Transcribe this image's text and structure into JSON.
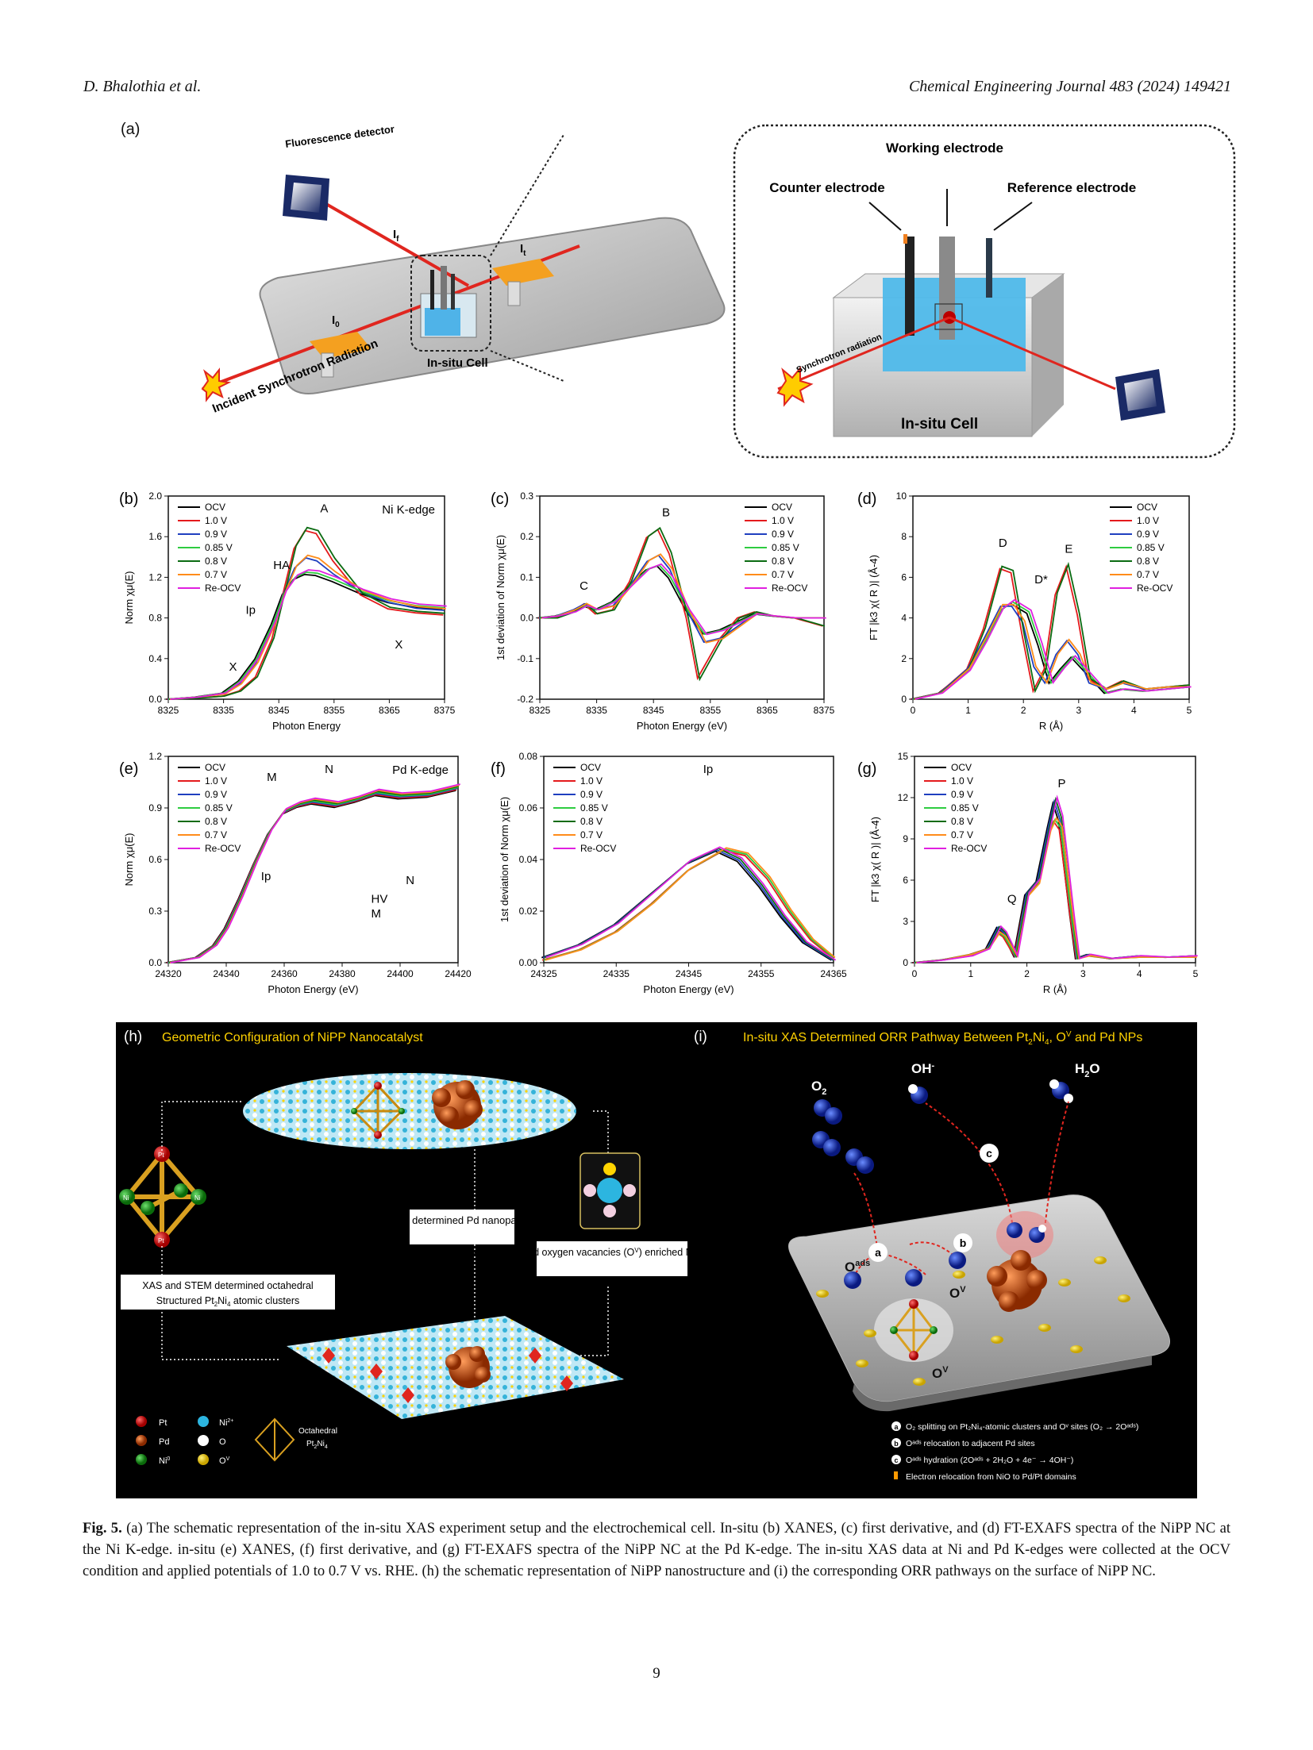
{
  "header": {
    "authors": "D. Bhalothia et al.",
    "journal": "Chemical Engineering Journal 483 (2024) 149421"
  },
  "panel_a": {
    "label": "(a)",
    "fluorescence_detector": "Fluorescence detector",
    "incident": "Incident Synchrotron Radiation",
    "i0": "I",
    "i0_sub": "0",
    "it": "I",
    "it_sub": "t",
    "if": "I",
    "if_sub": "f",
    "insitu_cell": "In-situ Cell",
    "counter_electrode": "Counter electrode",
    "working_electrode": "Working electrode",
    "reference_electrode": "Reference electrode",
    "synchrotron_radiation": "Synchrotron radiation",
    "insitu_cell_big": "In-situ Cell"
  },
  "legend_labels": [
    "OCV",
    "1.0 V",
    "0.9 V",
    "0.85 V",
    "0.8 V",
    "0.7 V",
    "Re-OCV"
  ],
  "series_colors": [
    "#000000",
    "#e41a1c",
    "#1f3fbf",
    "#2ecc40",
    "#0b6b12",
    "#ff8c1a",
    "#e020e0"
  ],
  "chart_data": [
    {
      "panel": "(b)",
      "type": "line",
      "title": "Ni K-edge",
      "xlabel": "Photon Energy",
      "ylabel": "Norm χμ(E)",
      "xlim": [
        8325,
        8375
      ],
      "ylim": [
        0.0,
        2.0
      ],
      "xticks": [
        "8325",
        "8335",
        "8345",
        "8355",
        "8365",
        "8375"
      ],
      "yticks": [
        "0.0",
        "0.4",
        "0.8",
        "1.2",
        "1.6",
        "2.0"
      ],
      "annotations": [
        "A",
        "HA",
        "Ip",
        "X",
        "X"
      ],
      "series": [
        {
          "name": "OCV",
          "x": [
            8325,
            8330,
            8335,
            8338,
            8341,
            8344,
            8346,
            8348,
            8350,
            8352,
            8355,
            8360,
            8365,
            8370,
            8375
          ],
          "y": [
            0.0,
            0.02,
            0.06,
            0.18,
            0.4,
            0.75,
            1.05,
            1.2,
            1.25,
            1.24,
            1.18,
            1.06,
            0.97,
            0.92,
            0.9
          ]
        },
        {
          "name": "0.7 V",
          "x": [
            8325,
            8330,
            8335,
            8338,
            8341,
            8344,
            8346,
            8348,
            8350,
            8352,
            8355,
            8360,
            8365,
            8370,
            8375
          ],
          "y": [
            0.0,
            0.01,
            0.03,
            0.08,
            0.22,
            0.6,
            1.05,
            1.5,
            1.68,
            1.65,
            1.38,
            1.04,
            0.9,
            0.86,
            0.84
          ]
        },
        {
          "name": "Re-OCV",
          "x": [
            8325,
            8330,
            8335,
            8338,
            8341,
            8344,
            8346,
            8348,
            8350,
            8352,
            8355,
            8360,
            8365,
            8370,
            8375
          ],
          "y": [
            0.0,
            0.02,
            0.05,
            0.15,
            0.36,
            0.72,
            1.05,
            1.3,
            1.4,
            1.37,
            1.24,
            1.06,
            0.96,
            0.9,
            0.88
          ]
        }
      ]
    },
    {
      "panel": "(c)",
      "type": "line",
      "xlabel": "Photon Energy (eV)",
      "ylabel": "1st deviation of Norm χμ(E)",
      "xlim": [
        8325,
        8375
      ],
      "ylim": [
        -0.2,
        0.3
      ],
      "xticks": [
        "8325",
        "8335",
        "8345",
        "8355",
        "8365",
        "8375"
      ],
      "yticks": [
        "-0.2",
        "-0.1",
        "0.0",
        "0.1",
        "0.2",
        "0.3"
      ],
      "annotations": [
        "B",
        "C"
      ],
      "series": [
        {
          "name": "OCV",
          "x": [
            8325,
            8328,
            8331,
            8333,
            8335,
            8338,
            8341,
            8344,
            8346,
            8348,
            8351,
            8354,
            8357,
            8360,
            8363,
            8366,
            8370,
            8375
          ],
          "y": [
            0.0,
            0.005,
            0.015,
            0.03,
            0.02,
            0.04,
            0.08,
            0.12,
            0.13,
            0.1,
            0.02,
            -0.04,
            -0.03,
            -0.01,
            0.01,
            0.005,
            0.0,
            0.0
          ]
        },
        {
          "name": "0.7 V",
          "x": [
            8325,
            8328,
            8331,
            8333,
            8335,
            8338,
            8341,
            8344,
            8346,
            8348,
            8351,
            8353,
            8355,
            8357,
            8360,
            8363,
            8366,
            8370,
            8375
          ],
          "y": [
            0.0,
            0.0,
            0.015,
            0.035,
            0.01,
            0.02,
            0.09,
            0.2,
            0.22,
            0.16,
            0.0,
            -0.15,
            -0.1,
            -0.05,
            0.0,
            0.015,
            0.005,
            0.0,
            -0.02
          ]
        },
        {
          "name": "Re-OCV",
          "x": [
            8325,
            8328,
            8331,
            8333,
            8335,
            8338,
            8341,
            8344,
            8346,
            8348,
            8351,
            8354,
            8357,
            8360,
            8363,
            8366,
            8370,
            8375
          ],
          "y": [
            0.0,
            0.005,
            0.02,
            0.035,
            0.02,
            0.03,
            0.08,
            0.14,
            0.155,
            0.12,
            0.02,
            -0.06,
            -0.05,
            -0.02,
            0.01,
            0.005,
            0.0,
            0.0
          ]
        }
      ]
    },
    {
      "panel": "(d)",
      "type": "line",
      "xlabel": "R (Å)",
      "ylabel": "FT |k3 χ( R )| (Å-4)",
      "xlim": [
        0,
        5
      ],
      "ylim": [
        0,
        10
      ],
      "xticks": [
        "0",
        "1",
        "2",
        "3",
        "4",
        "5"
      ],
      "yticks": [
        "0",
        "2",
        "4",
        "6",
        "8",
        "10"
      ],
      "annotations": [
        "D",
        "D*",
        "E"
      ],
      "series": [
        {
          "name": "OCV",
          "x": [
            0,
            0.5,
            1.0,
            1.3,
            1.6,
            1.8,
            2.1,
            2.3,
            2.5,
            2.7,
            2.9,
            3.2,
            3.5,
            3.8,
            4.2,
            4.6,
            5.0
          ],
          "y": [
            0,
            0.3,
            1.4,
            2.8,
            4.4,
            4.8,
            4.3,
            2.7,
            0.8,
            1.5,
            2.1,
            1.2,
            0.3,
            0.5,
            0.4,
            0.5,
            0.6
          ]
        },
        {
          "name": "0.7 V",
          "x": [
            0,
            0.5,
            1.0,
            1.3,
            1.6,
            1.8,
            2.0,
            2.2,
            2.4,
            2.6,
            2.8,
            3.0,
            3.2,
            3.5,
            3.8,
            4.2,
            4.6,
            5.0
          ],
          "y": [
            0,
            0.3,
            1.5,
            3.5,
            6.5,
            6.3,
            3.2,
            0.4,
            1.5,
            5.2,
            6.6,
            4.2,
            1.0,
            0.5,
            0.9,
            0.5,
            0.6,
            0.7
          ]
        },
        {
          "name": "Re-OCV",
          "x": [
            0,
            0.5,
            1.0,
            1.3,
            1.6,
            1.8,
            2.0,
            2.2,
            2.4,
            2.6,
            2.8,
            3.0,
            3.2,
            3.5,
            3.8,
            4.2,
            4.6,
            5.0
          ],
          "y": [
            0,
            0.3,
            1.5,
            3.0,
            4.6,
            4.6,
            3.8,
            1.6,
            0.8,
            2.2,
            2.9,
            2.2,
            0.8,
            0.5,
            0.8,
            0.5,
            0.6,
            0.6
          ]
        }
      ]
    },
    {
      "panel": "(e)",
      "type": "line",
      "title": "Pd K-edge",
      "xlabel": "Photon Energy (eV)",
      "ylabel": "Norm χμ(E)",
      "xlim": [
        24320,
        24420
      ],
      "ylim": [
        0.0,
        1.2
      ],
      "xticks": [
        "24320",
        "24340",
        "24360",
        "24380",
        "24400",
        "24420"
      ],
      "yticks": [
        "0.0",
        "0.3",
        "0.6",
        "0.9",
        "1.2"
      ],
      "annotations": [
        "M",
        "N",
        "Ip",
        "M",
        "N",
        "HV"
      ],
      "series": [
        {
          "name": "OCV",
          "x": [
            24320,
            24330,
            24336,
            24340,
            24345,
            24350,
            24355,
            24360,
            24365,
            24370,
            24378,
            24385,
            24392,
            24400,
            24410,
            24420
          ],
          "y": [
            0.0,
            0.03,
            0.1,
            0.2,
            0.38,
            0.58,
            0.76,
            0.88,
            0.92,
            0.94,
            0.92,
            0.95,
            0.99,
            0.97,
            0.98,
            1.02
          ]
        }
      ]
    },
    {
      "panel": "(f)",
      "type": "line",
      "xlabel": "Photon Energy (eV)",
      "ylabel": "1st deviation of Norm χμ(E)",
      "xlim": [
        24325,
        24365
      ],
      "ylim": [
        0.0,
        0.08
      ],
      "xticks": [
        "24325",
        "24335",
        "24345",
        "24355",
        "24365"
      ],
      "yticks": [
        "0.00",
        "0.02",
        "0.04",
        "0.06",
        "0.08"
      ],
      "annotations": [
        "Ip"
      ],
      "series": [
        {
          "name": "OCV",
          "x": [
            24325,
            24330,
            24335,
            24340,
            24345,
            24349,
            24352,
            24355,
            24358,
            24361,
            24365
          ],
          "y": [
            0.002,
            0.007,
            0.015,
            0.027,
            0.039,
            0.044,
            0.04,
            0.03,
            0.018,
            0.008,
            0.001
          ]
        },
        {
          "name": "0.8 V",
          "x": [
            24325,
            24330,
            24335,
            24340,
            24345,
            24350,
            24353,
            24356,
            24359,
            24362,
            24365
          ],
          "y": [
            0.001,
            0.005,
            0.012,
            0.023,
            0.036,
            0.044,
            0.042,
            0.033,
            0.02,
            0.009,
            0.002
          ]
        }
      ]
    },
    {
      "panel": "(g)",
      "type": "line",
      "xlabel": "R (Å)",
      "ylabel": "FT |k3 χ( R )| (Å-4)",
      "xlim": [
        0,
        5
      ],
      "ylim": [
        0,
        15
      ],
      "xticks": [
        "0",
        "1",
        "2",
        "3",
        "4",
        "5"
      ],
      "yticks": [
        "0",
        "3",
        "6",
        "9",
        "12",
        "15"
      ],
      "annotations": [
        "Q",
        "P"
      ],
      "series": [
        {
          "name": "0.7 V",
          "x": [
            0,
            0.5,
            1.0,
            1.3,
            1.5,
            1.6,
            1.8,
            2.0,
            2.2,
            2.4,
            2.5,
            2.6,
            2.8,
            2.9,
            3.1,
            3.5,
            4.0,
            4.5,
            5.0
          ],
          "y": [
            0,
            0.2,
            0.5,
            1.0,
            2.6,
            2.2,
            0.5,
            5.0,
            6.0,
            10.0,
            11.8,
            10.5,
            3.5,
            0.3,
            0.6,
            0.3,
            0.5,
            0.4,
            0.5
          ]
        },
        {
          "name": "0.9 V",
          "x": [
            0,
            0.5,
            1.0,
            1.3,
            1.5,
            1.6,
            1.8,
            2.0,
            2.2,
            2.4,
            2.5,
            2.6,
            2.8,
            2.9,
            3.1,
            3.5,
            4.0,
            4.5,
            5.0
          ],
          "y": [
            0,
            0.2,
            0.6,
            1.0,
            2.2,
            1.9,
            0.5,
            4.8,
            5.7,
            9.5,
            10.4,
            9.8,
            3.2,
            0.3,
            0.5,
            0.3,
            0.4,
            0.4,
            0.4
          ]
        }
      ]
    }
  ],
  "panel_h": {
    "label": "(h)",
    "title": "Geometric Configuration of NiPP Nanocatalyst",
    "stem_box": "STEM determined Pd nanoparticles",
    "xas_vac_box": "XAS determined oxygen vacancies (O",
    "xas_vac_sup": "V",
    "xas_vac_rest": ") enriched Ni(OH)x support",
    "octa_box_1": "XAS and STEM determined octahedral",
    "octa_box_2": "Structured Pt",
    "octa_box_2_sub1": "2",
    "octa_box_2_mid": "Ni",
    "octa_box_2_sub2": "4",
    "octa_box_2_rest": " atomic clusters",
    "legend": {
      "pt": "Pt",
      "pd": "Pd",
      "ni0": "Ni",
      "ni0_sup": "0",
      "ni2": "Ni",
      "ni2_sup": "2+",
      "o": "O",
      "ov": "O",
      "ov_sup": "V",
      "octa_1": "Octahedral",
      "octa_2": "Pt",
      "octa_2_sub1": "2",
      "octa_2_mid": "Ni",
      "octa_2_sub2": "4"
    },
    "atom_pt": "Pt",
    "atom_ni": "Ni"
  },
  "panel_i": {
    "label": "(i)",
    "title": "In-situ XAS Determined ORR Pathway Between Pt",
    "title_sub1": "2",
    "title_mid": "Ni",
    "title_sub2": "4",
    "title_rest": ", O",
    "title_sup": "V",
    "title_end": " and Pd NPs",
    "o2": "O",
    "o2_sub": "2",
    "oh": "OH",
    "oh_sup": "-",
    "h2o": "H",
    "h2o_sub": "2",
    "h2o_end": "O",
    "oads": "O",
    "oads_sup": "ads",
    "ov": "O",
    "ov_sup": "V",
    "step_a": "a",
    "step_b": "b",
    "step_c": "c",
    "legend_a": "O₂ splitting on Pt₂Ni₄-atomic clusters and Oᵛ sites (O₂ → 2Oᵃᵈˢ)",
    "legend_b": "Oᵃᵈˢ relocation to adjacent Pd sites",
    "legend_c": "Oᵃᵈˢ hydration (2Oᵃᵈˢ + 2H₂O + 4e⁻ → 4OH⁻)",
    "legend_d": "Electron relocation from NiO to Pd/Pt domains"
  },
  "caption": {
    "fig": "Fig. 5.",
    "text": "(a) The schematic representation of the in-situ XAS experiment setup and the electrochemical cell. In-situ (b) XANES, (c) first derivative, and (d) FT-EXAFS spectra of the NiPP NC at the Ni K-edge. in-situ (e) XANES, (f) first derivative, and (g) FT-EXAFS spectra of the NiPP NC at the Pd K-edge. The in-situ XAS data at Ni and Pd K-edges were collected at the OCV condition and applied potentials of 1.0 to 0.7 V vs. RHE. (h) the schematic representation of NiPP nanostructure and (i) the corresponding ORR pathways on the surface of NiPP NC."
  },
  "page_number": "9"
}
